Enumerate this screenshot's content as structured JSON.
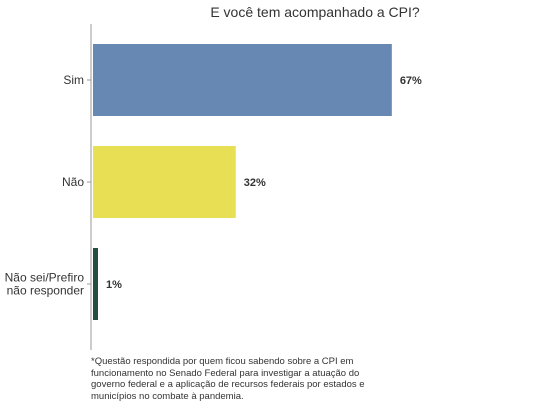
{
  "chart_data": {
    "type": "bar",
    "orientation": "horizontal",
    "title": "E você tem acompanhado a CPI?",
    "categories": [
      "Sim",
      "Não",
      "Não sei/Prefiro não responder"
    ],
    "category_lines": [
      [
        "Sim"
      ],
      [
        "Não"
      ],
      [
        "Não sei/Prefiro",
        "não responder"
      ]
    ],
    "values": [
      67,
      32,
      1
    ],
    "value_labels": [
      "67%",
      "32%",
      "1%"
    ],
    "colors": [
      "#6688b2",
      "#e8df55",
      "#264e3e"
    ],
    "xlim": [
      0,
      100
    ],
    "grid": false,
    "legend": "none"
  },
  "footnote": "*Questão respondida por quem ficou sabendo sobre a CPI em funcionamento no Senado Federal para investigar a atuação do governo federal e a aplicação de recursos federais por estados e municípios no combate à pandemia."
}
